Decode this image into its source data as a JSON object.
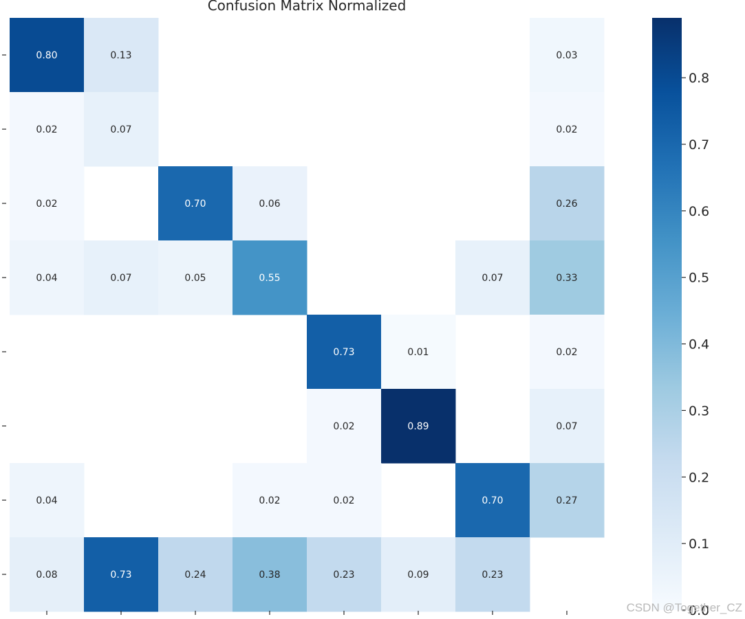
{
  "chart_data": {
    "type": "heatmap",
    "title": "Confusion Matrix Normalized",
    "colormap": "Blues",
    "vmin": 0.0,
    "vmax": 0.89,
    "colorbar_ticks": [
      "0.0",
      "0.1",
      "0.2",
      "0.3",
      "0.4",
      "0.5",
      "0.6",
      "0.7",
      "0.8"
    ],
    "annotation_format": "0.00",
    "matrix": [
      [
        0.8,
        0.13,
        null,
        null,
        null,
        null,
        null,
        0.03
      ],
      [
        0.02,
        0.07,
        null,
        null,
        null,
        null,
        null,
        0.02
      ],
      [
        0.02,
        null,
        0.7,
        0.06,
        null,
        null,
        null,
        0.26
      ],
      [
        0.04,
        0.07,
        0.05,
        0.55,
        null,
        null,
        0.07,
        0.33
      ],
      [
        null,
        null,
        null,
        null,
        0.73,
        0.01,
        null,
        0.02
      ],
      [
        null,
        null,
        null,
        null,
        0.02,
        0.89,
        null,
        0.07
      ],
      [
        0.04,
        null,
        null,
        0.02,
        0.02,
        null,
        0.7,
        0.27
      ],
      [
        0.08,
        0.73,
        0.24,
        0.38,
        0.23,
        0.09,
        0.23,
        null
      ]
    ]
  },
  "watermark": "CSDN @Together_CZ"
}
